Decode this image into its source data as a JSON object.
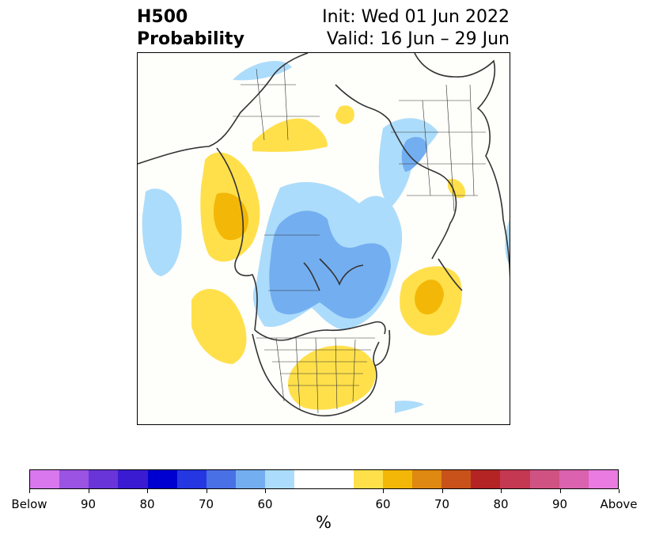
{
  "title": {
    "left_line1": "H500",
    "left_line2": "Probability",
    "right_line1": "Init: Wed 01 Jun 2022",
    "right_line2": "Valid: 16 Jun – 29 Jun"
  },
  "colorbar": {
    "unit": "%",
    "colors": [
      "#d877ee",
      "#9a53e2",
      "#6a35d8",
      "#3b1bd2",
      "#0000d0",
      "#2537e0",
      "#4a70e6",
      "#73aef0",
      "#acdcfb",
      "#ffffff",
      "#ffe04b",
      "#f3b707",
      "#df8912",
      "#c85219",
      "#b42424",
      "#c53852",
      "#d05283",
      "#da62ae",
      "#e97be1"
    ],
    "tick_labels": [
      "Below",
      "90",
      "80",
      "70",
      "60",
      "60",
      "70",
      "80",
      "90",
      "Above"
    ]
  },
  "map": {
    "colors": {
      "blue_60": "#acdcfb",
      "blue_70": "#73aef0",
      "yellow_60": "#ffe04b",
      "yellow_70": "#f3b707",
      "land_line": "#333333"
    }
  }
}
